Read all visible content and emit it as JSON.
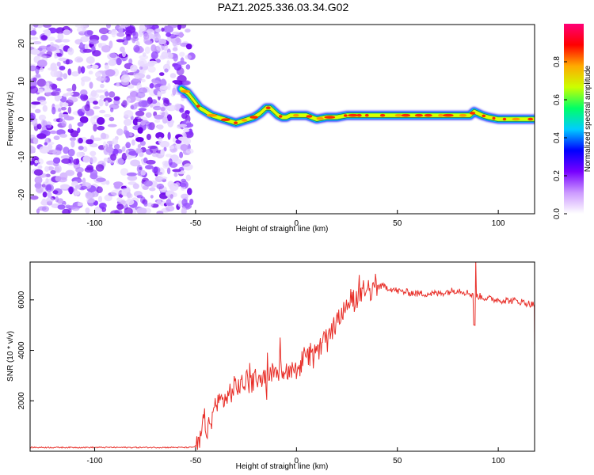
{
  "title": "PAZ1.2025.336.03.34.G02",
  "chart_data": [
    {
      "type": "heatmap",
      "xlabel": "Height of straight line (km)",
      "ylabel": "Frequency (Hz)",
      "xlim": [
        -132,
        118
      ],
      "ylim": [
        -25,
        25
      ],
      "x_ticks": [
        -100,
        -50,
        0,
        50,
        100
      ],
      "y_ticks": [
        -20,
        -10,
        0,
        10,
        20
      ],
      "x_tick_labels": [
        "-100",
        "-50",
        "0",
        "50",
        "100"
      ],
      "y_tick_labels": [
        "-20",
        "-10",
        "0",
        "10",
        "20"
      ],
      "noise_region_x": [
        -132,
        -52
      ],
      "ridge": {
        "x": [
          -57,
          -54,
          -51,
          -48,
          -45,
          -42,
          -39,
          -36,
          -33,
          -30,
          -27,
          -24,
          -21,
          -18,
          -15,
          -13,
          -11,
          -9,
          -7,
          -5,
          -3,
          0,
          5,
          10,
          15,
          20,
          25,
          30,
          40,
          50,
          60,
          70,
          80,
          86,
          88,
          90,
          92,
          95,
          100,
          105,
          110,
          118
        ],
        "freq": [
          8,
          7,
          5,
          3,
          2,
          1,
          0.5,
          0,
          -0.5,
          -1,
          -0.5,
          0,
          0.5,
          1.5,
          3,
          3,
          2,
          1,
          0.5,
          0.5,
          1,
          1,
          1,
          0,
          0.5,
          0.5,
          1,
          1,
          1,
          1,
          1,
          1,
          1,
          1,
          2,
          1.5,
          1,
          0.5,
          0,
          0,
          0,
          0
        ]
      }
    },
    {
      "type": "colorbar",
      "label": "Normalized spectral amplitude",
      "range": [
        0,
        1
      ],
      "ticks": [
        0.0,
        0.2,
        0.4,
        0.6,
        0.8
      ],
      "tick_labels": [
        "0.0",
        "0.2",
        "0.4",
        "0.6",
        "0.8"
      ],
      "colors": [
        "#ffffff",
        "#cc99ff",
        "#7700ff",
        "#0000ff",
        "#00ccff",
        "#00ff66",
        "#ccff00",
        "#ffaa00",
        "#ff0000",
        "#ff0077"
      ]
    },
    {
      "type": "line",
      "xlabel": "Height of straight line (km)",
      "ylabel": "SNR (10 * v/v)",
      "xlim": [
        -132,
        118
      ],
      "ylim": [
        0,
        7500
      ],
      "x_ticks": [
        -100,
        -50,
        0,
        50,
        100
      ],
      "y_ticks": [
        2000,
        4000,
        6000
      ],
      "x_tick_labels": [
        "-100",
        "-50",
        "0",
        "50",
        "100"
      ],
      "y_tick_labels": [
        "2000",
        "4000",
        "6000"
      ],
      "color": "#e8302a",
      "trend": {
        "x": [
          -132,
          -52,
          -48,
          -46,
          -44,
          -40,
          -35,
          -30,
          -25,
          -20,
          -15,
          -10,
          -5,
          0,
          5,
          10,
          15,
          20,
          25,
          30,
          35,
          40,
          45,
          50,
          60,
          70,
          80,
          88,
          95,
          100,
          110,
          118
        ],
        "y": [
          150,
          150,
          250,
          1300,
          700,
          1900,
          2100,
          2500,
          2750,
          2900,
          2950,
          3100,
          3250,
          3400,
          3700,
          3850,
          4500,
          5100,
          5800,
          6100,
          6350,
          6550,
          6500,
          6350,
          6250,
          6250,
          6400,
          6200,
          6050,
          6000,
          5950,
          5800
        ]
      }
    }
  ]
}
